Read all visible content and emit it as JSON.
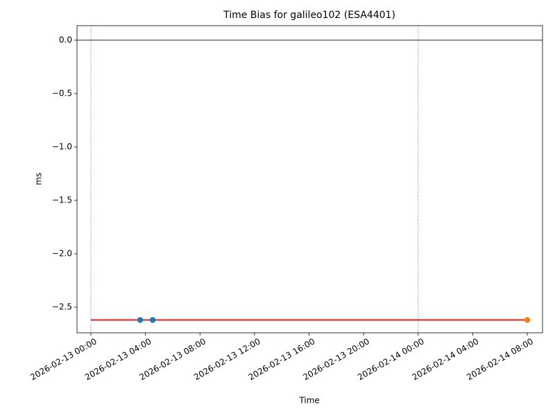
{
  "chart_data": {
    "type": "line",
    "title": "Time Bias for galileo102 (ESA4401)",
    "x_label": "Time",
    "y_label": "ms",
    "xlim": [
      "2026-02-12 22:59",
      "2026-02-14 09:07"
    ],
    "xticks": [
      "2026-02-13 00:00",
      "2026-02-13 04:00",
      "2026-02-13 08:00",
      "2026-02-13 12:00",
      "2026-02-13 16:00",
      "2026-02-13 20:00",
      "2026-02-14 00:00",
      "2026-02-14 04:00",
      "2026-02-14 08:00"
    ],
    "ylim": [
      -2.74,
      0.136
    ],
    "yticks": [
      {
        "value": 0,
        "label": "0.0"
      },
      {
        "value": -0.5,
        "label": "−0.5"
      },
      {
        "value": -1,
        "label": "−1.0"
      },
      {
        "value": -1.5,
        "label": "−1.5"
      },
      {
        "value": -2,
        "label": "−2.0"
      },
      {
        "value": -2.5,
        "label": "−2.5"
      }
    ],
    "hlines": [
      0
    ],
    "hline_color": "#000000",
    "vlines": [
      "2026-02-13 00:00",
      "2026-02-14 00:00"
    ],
    "vline_color": "#1f77b4",
    "series": [
      {
        "mode": "line",
        "color": "#e00000",
        "x": [
          "2026-02-13 00:00",
          "2026-02-14 08:00"
        ],
        "values": [
          -2.62,
          -2.62
        ]
      },
      {
        "mode": "markers",
        "color": "#1f77b4",
        "x": [
          "2026-02-13 03:37",
          "2026-02-13 04:32"
        ],
        "values": [
          -2.62,
          -2.62
        ]
      },
      {
        "mode": "markers",
        "color": "#ff7f0e",
        "x": [
          "2026-02-14 08:00"
        ],
        "values": [
          -2.62
        ]
      }
    ]
  }
}
